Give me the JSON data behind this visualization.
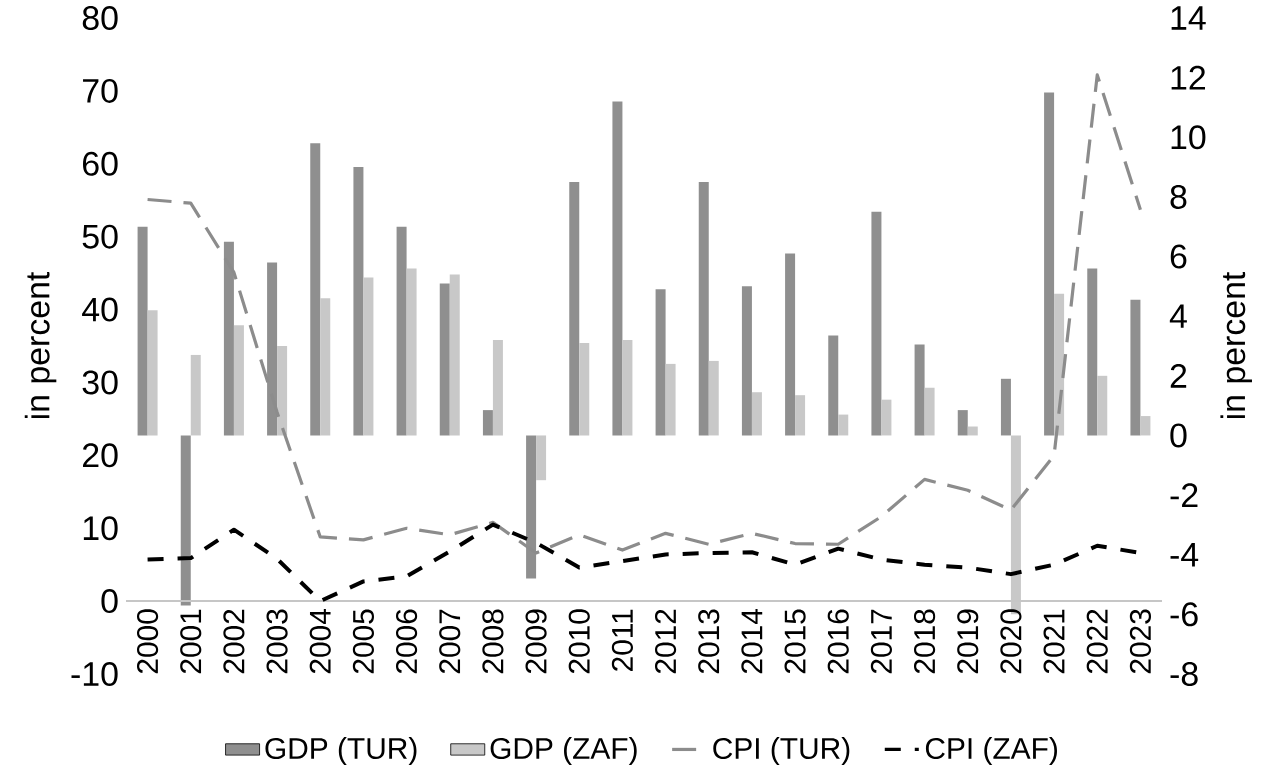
{
  "chart_data": {
    "type": "bar",
    "categories": [
      "2000",
      "2001",
      "2002",
      "2003",
      "2004",
      "2005",
      "2006",
      "2007",
      "2008",
      "2009",
      "2010",
      "2011",
      "2012",
      "2013",
      "2014",
      "2015",
      "2016",
      "2017",
      "2018",
      "2019",
      "2020",
      "2021",
      "2022",
      "2023"
    ],
    "series": [
      {
        "name": "GDP (TUR)",
        "color": "#8f8f8f",
        "axis": "y2",
        "values": [
          7.0,
          -5.7,
          6.5,
          5.8,
          9.8,
          9.0,
          7.0,
          5.1,
          0.85,
          -4.8,
          8.5,
          11.2,
          4.9,
          8.5,
          5.0,
          6.1,
          3.35,
          7.5,
          3.05,
          0.85,
          1.9,
          11.5,
          5.6,
          4.55
        ]
      },
      {
        "name": "GDP (ZAF)",
        "color": "#c8c8c8",
        "axis": "y2",
        "values": [
          4.2,
          2.7,
          3.7,
          3.0,
          4.6,
          5.3,
          5.6,
          5.4,
          3.2,
          -1.5,
          3.1,
          3.2,
          2.4,
          2.5,
          1.45,
          1.35,
          0.7,
          1.2,
          1.6,
          0.3,
          -6.0,
          4.75,
          2.0,
          0.65
        ]
      },
      {
        "name": "CPI (TUR)",
        "color": "#8c8c8c",
        "type": "line",
        "line_style": "dashed",
        "values": [
          55.1,
          54.6,
          45.1,
          25.9,
          8.8,
          8.4,
          10.0,
          9.1,
          10.8,
          6.6,
          9.1,
          7.0,
          9.3,
          7.8,
          9.3,
          7.9,
          7.8,
          11.6,
          16.7,
          15.2,
          12.5,
          20.0,
          72.2,
          53.7
        ]
      },
      {
        "name": "CPI (ZAF)",
        "color": "#000000",
        "type": "line",
        "line_style": "dashed",
        "values": [
          5.7,
          5.9,
          9.8,
          5.8,
          0.0,
          2.7,
          3.4,
          6.8,
          10.5,
          8.0,
          4.6,
          5.5,
          6.4,
          6.6,
          6.7,
          5.0,
          7.2,
          5.7,
          5.0,
          4.6,
          3.7,
          5.0,
          7.6,
          6.6
        ]
      }
    ],
    "ylabel": "in percent",
    "y2label": "in percent",
    "ylim": [
      -10,
      80
    ],
    "yticks": [
      -10,
      0,
      10,
      20,
      30,
      40,
      50,
      60,
      70,
      80
    ],
    "y2lim": [
      -8,
      14
    ],
    "y2ticks": [
      -8,
      -6,
      -4,
      -2,
      0,
      2,
      4,
      6,
      8,
      10,
      12,
      14
    ],
    "legend": "bottom",
    "grid": false
  }
}
